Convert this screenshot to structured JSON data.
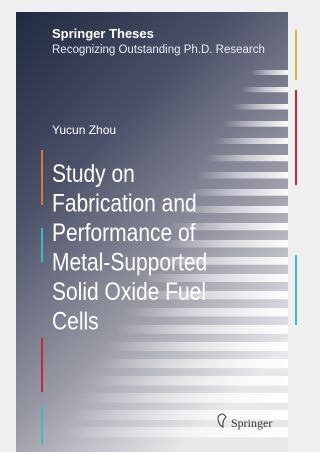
{
  "cover": {
    "series": "Springer Theses",
    "series_subtitle": "Recognizing Outstanding Ph.D. Research",
    "author": "Yucun Zhou",
    "title_lines": [
      "Study on",
      "Fabrication and",
      "Performance of",
      "Metal-Supported",
      "Solid Oxide Fuel",
      "Cells"
    ],
    "publisher": "Springer"
  }
}
